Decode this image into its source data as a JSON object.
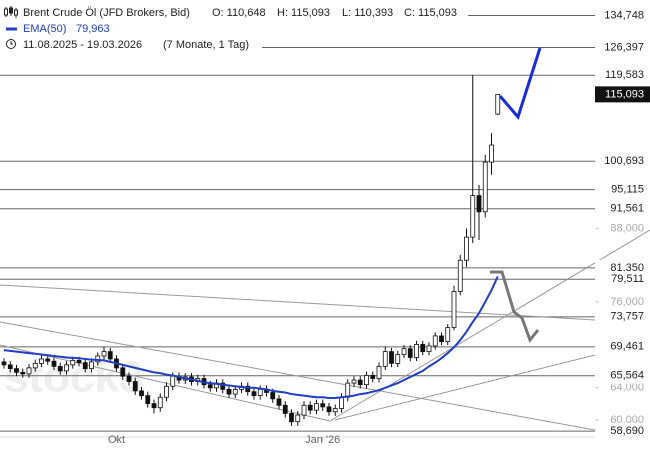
{
  "chart_data": {
    "type": "candlestick",
    "title": "Brent Crude Öl (JFD Brokers, Bid)",
    "ohlc_readout": [
      "O: 110,648",
      "H: 115,093",
      "L: 110,393",
      "C: 115,093"
    ],
    "date_range": "11.08.2025 - 19.03.2026",
    "period": "(7 Monate, 1 Tag)",
    "watermark": "stock3",
    "log_scale": true,
    "ylim": [
      58,
      139
    ],
    "yticks": [
      {
        "value": 88,
        "label": "88,000"
      },
      {
        "value": 76,
        "label": "76,000"
      },
      {
        "value": 64,
        "label": "64,000"
      },
      {
        "value": 60,
        "label": "60,000"
      }
    ],
    "levels": [
      {
        "value": 134.748,
        "label": "134,748"
      },
      {
        "value": 126.397,
        "label": "126,397"
      },
      {
        "value": 119.583,
        "label": "119,583"
      },
      {
        "value": 100.693,
        "label": "100,693"
      },
      {
        "value": 95.115,
        "label": "95,115"
      },
      {
        "value": 91.561,
        "label": "91,561"
      },
      {
        "value": 81.35,
        "label": "81,350"
      },
      {
        "value": 79.511,
        "label": "79,511"
      },
      {
        "value": 73.757,
        "label": "73,757"
      },
      {
        "value": 69.461,
        "label": "69,461"
      },
      {
        "value": 65.564,
        "label": "65,564"
      },
      {
        "value": 58.69,
        "label": "58,690"
      }
    ],
    "last_price": {
      "value": 115.093,
      "label": "115,093"
    },
    "categories": [
      null,
      null,
      null,
      null,
      null,
      null,
      null,
      null,
      null,
      null,
      null,
      null,
      null,
      null,
      null,
      null,
      null,
      null,
      "Okt",
      null,
      null,
      null,
      null,
      null,
      null,
      null,
      null,
      null,
      null,
      null,
      null,
      null,
      null,
      null,
      null,
      null,
      null,
      null,
      null,
      null,
      null,
      null,
      null,
      null,
      null,
      null,
      null,
      null,
      null,
      null,
      null,
      "Jan '26",
      null,
      null,
      null,
      null,
      null,
      null,
      null,
      null,
      null,
      null,
      null,
      null,
      null,
      null,
      null,
      null,
      null,
      null,
      null,
      null,
      null,
      null,
      null,
      null,
      null,
      null,
      null,
      null
    ],
    "ohlc": [
      [
        67.4,
        67.9,
        66.5,
        67.0
      ],
      [
        67.0,
        67.5,
        66.0,
        66.5
      ],
      [
        66.5,
        67.0,
        65.5,
        66.0
      ],
      [
        66.0,
        66.5,
        65.3,
        65.8
      ],
      [
        65.8,
        67.1,
        65.3,
        66.6
      ],
      [
        66.6,
        67.7,
        66.1,
        67.2
      ],
      [
        67.2,
        68.3,
        66.7,
        67.8
      ],
      [
        67.8,
        68.3,
        67.0,
        67.5
      ],
      [
        67.5,
        68.0,
        66.3,
        66.8
      ],
      [
        66.8,
        67.3,
        65.7,
        66.2
      ],
      [
        66.2,
        67.5,
        65.7,
        67.0
      ],
      [
        67.0,
        68.1,
        66.5,
        67.6
      ],
      [
        67.6,
        68.1,
        66.8,
        67.3
      ],
      [
        67.3,
        67.8,
        66.0,
        66.5
      ],
      [
        66.5,
        67.9,
        66.0,
        67.4
      ],
      [
        67.4,
        68.7,
        66.9,
        68.2
      ],
      [
        68.2,
        69.5,
        67.7,
        68.8
      ],
      [
        68.8,
        69.3,
        67.3,
        67.8
      ],
      [
        67.8,
        68.3,
        66.1,
        66.6
      ],
      [
        66.6,
        67.1,
        65.0,
        65.5
      ],
      [
        65.5,
        66.0,
        64.3,
        64.8
      ],
      [
        64.8,
        65.3,
        63.1,
        63.6
      ],
      [
        63.6,
        64.1,
        62.5,
        63.0
      ],
      [
        63.0,
        63.5,
        61.5,
        62.0
      ],
      [
        62.0,
        62.5,
        60.8,
        61.5
      ],
      [
        61.5,
        63.3,
        61.0,
        62.8
      ],
      [
        62.8,
        64.7,
        62.3,
        64.2
      ],
      [
        64.2,
        66.0,
        63.7,
        65.5
      ],
      [
        65.5,
        66.0,
        64.5,
        65.0
      ],
      [
        65.0,
        65.9,
        64.5,
        65.4
      ],
      [
        65.4,
        65.9,
        64.3,
        64.8
      ],
      [
        64.8,
        65.7,
        64.3,
        65.2
      ],
      [
        65.2,
        65.7,
        63.9,
        64.4
      ],
      [
        64.4,
        64.9,
        63.5,
        64.0
      ],
      [
        64.0,
        65.1,
        63.5,
        64.6
      ],
      [
        64.6,
        65.1,
        63.3,
        63.8
      ],
      [
        63.8,
        64.3,
        62.7,
        63.2
      ],
      [
        63.2,
        64.3,
        62.7,
        63.8
      ],
      [
        63.8,
        64.7,
        63.3,
        64.2
      ],
      [
        64.2,
        64.7,
        63.0,
        63.5
      ],
      [
        63.5,
        64.0,
        62.5,
        63.0
      ],
      [
        63.0,
        64.3,
        62.5,
        63.8
      ],
      [
        63.8,
        64.3,
        62.9,
        63.4
      ],
      [
        63.4,
        63.9,
        62.1,
        62.6
      ],
      [
        62.6,
        63.1,
        61.3,
        61.8
      ],
      [
        61.8,
        62.3,
        60.3,
        60.8
      ],
      [
        60.8,
        61.3,
        59.3,
        59.8
      ],
      [
        59.8,
        61.1,
        59.3,
        60.6
      ],
      [
        60.6,
        62.3,
        60.1,
        61.8
      ],
      [
        61.8,
        62.3,
        60.7,
        61.2
      ],
      [
        61.2,
        62.5,
        60.7,
        62.0
      ],
      [
        62.0,
        62.5,
        61.1,
        61.6
      ],
      [
        61.6,
        62.1,
        60.5,
        61.0
      ],
      [
        61.0,
        61.9,
        60.5,
        61.4
      ],
      [
        61.4,
        63.3,
        60.9,
        62.8
      ],
      [
        62.8,
        65.1,
        62.3,
        64.6
      ],
      [
        64.6,
        65.5,
        64.1,
        65.0
      ],
      [
        65.0,
        65.5,
        63.9,
        64.4
      ],
      [
        64.4,
        66.1,
        63.9,
        65.6
      ],
      [
        65.6,
        66.1,
        64.7,
        65.2
      ],
      [
        65.2,
        67.3,
        64.7,
        66.8
      ],
      [
        66.8,
        69.5,
        66.3,
        68.8
      ],
      [
        68.8,
        69.3,
        66.7,
        67.2
      ],
      [
        67.2,
        68.9,
        66.7,
        68.4
      ],
      [
        68.4,
        69.7,
        67.9,
        69.2
      ],
      [
        69.2,
        69.7,
        67.5,
        68.0
      ],
      [
        68.0,
        70.3,
        67.5,
        69.8
      ],
      [
        69.8,
        70.3,
        68.3,
        68.8
      ],
      [
        68.8,
        70.1,
        68.3,
        69.6
      ],
      [
        69.6,
        71.5,
        69.1,
        71.0
      ],
      [
        71.0,
        71.5,
        69.7,
        70.2
      ],
      [
        70.2,
        72.7,
        69.7,
        72.2
      ],
      [
        72.2,
        78.5,
        71.8,
        77.6
      ],
      [
        77.6,
        83.5,
        77.0,
        82.6
      ],
      [
        82.6,
        88.0,
        81.5,
        86.5
      ],
      [
        86.5,
        119.583,
        85.5,
        94.0
      ],
      [
        94.0,
        96.0,
        86.0,
        91.0
      ],
      [
        91.0,
        102.0,
        90.0,
        100.5
      ],
      [
        100.5,
        106.5,
        98.0,
        104.0
      ],
      [
        110.648,
        115.093,
        110.393,
        115.093
      ]
    ],
    "series": [
      {
        "name": "EMA(50)",
        "color": "#1f3fc4",
        "last_label": "79,963",
        "values": [
          69.0,
          68.9,
          68.8,
          68.7,
          68.6,
          68.5,
          68.4,
          68.3,
          68.2,
          68.1,
          68.0,
          67.95,
          67.9,
          67.8,
          67.7,
          67.65,
          67.6,
          67.4,
          67.2,
          67.0,
          66.8,
          66.6,
          66.4,
          66.2,
          66.0,
          65.9,
          65.7,
          65.6,
          65.4,
          65.2,
          65.1,
          64.9,
          64.7,
          64.6,
          64.5,
          64.4,
          64.3,
          64.2,
          64.1,
          64.0,
          64.0,
          63.9,
          63.8,
          63.6,
          63.5,
          63.4,
          63.2,
          63.1,
          63.0,
          62.9,
          62.8,
          62.8,
          62.7,
          62.7,
          62.8,
          62.9,
          63.0,
          63.2,
          63.3,
          63.5,
          63.7,
          64.0,
          64.3,
          64.6,
          65.0,
          65.4,
          65.8,
          66.2,
          66.8,
          67.3,
          67.9,
          68.6,
          69.4,
          70.4,
          71.6,
          73.0,
          74.3,
          76.0,
          77.8,
          79.963
        ]
      }
    ]
  }
}
